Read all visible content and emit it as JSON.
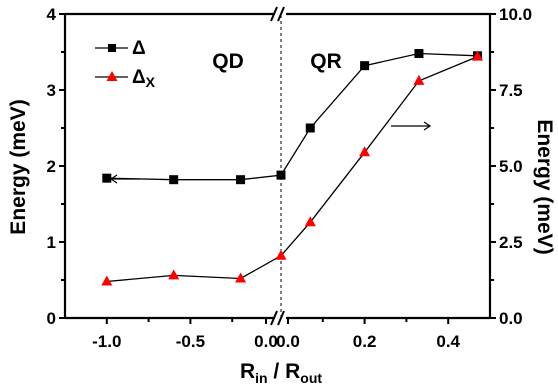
{
  "chart_data": {
    "type": "line",
    "title": "",
    "xlabel": "R_in / R_out",
    "xlabel_parts": {
      "main_a": "R",
      "sub_a": "in",
      "sep": " / ",
      "main_b": "R",
      "sub_b": "out"
    },
    "ylabel_left": "Energy (meV)",
    "ylabel_right": "Energy (meV)",
    "ylim_left": [
      0,
      4
    ],
    "ylim_right": [
      0,
      10
    ],
    "x_ticks": [
      "-1.0",
      "-0.5",
      "0.0",
      "0.0",
      "0.2",
      "0.4"
    ],
    "y_left_ticks": [
      "0",
      "1",
      "2",
      "3",
      "4"
    ],
    "y_right_ticks": [
      "0.0",
      "2.5",
      "5.0",
      "7.5",
      "10.0"
    ],
    "regions": [
      "QD",
      "QR"
    ],
    "axis_break": true,
    "legend_position": "top-left",
    "series": [
      {
        "name": "Δ",
        "legend_main": "Δ",
        "axis": "left",
        "marker": "square",
        "color": "#000000",
        "x": [
          -1.0,
          -0.6,
          -0.2,
          0.0,
          0.07,
          0.2,
          0.33,
          0.47
        ],
        "values": [
          1.84,
          1.82,
          1.82,
          1.88,
          2.5,
          3.32,
          3.48,
          3.45
        ]
      },
      {
        "name": "Δx",
        "legend_main": "Δ",
        "legend_sub": "X",
        "axis": "right",
        "marker": "triangle",
        "color": "#ff0000",
        "x": [
          -1.0,
          -0.6,
          -0.2,
          0.0,
          0.07,
          0.2,
          0.33,
          0.47
        ],
        "values": [
          1.2,
          1.4,
          1.3,
          2.05,
          3.15,
          5.45,
          7.8,
          8.6
        ]
      }
    ]
  }
}
